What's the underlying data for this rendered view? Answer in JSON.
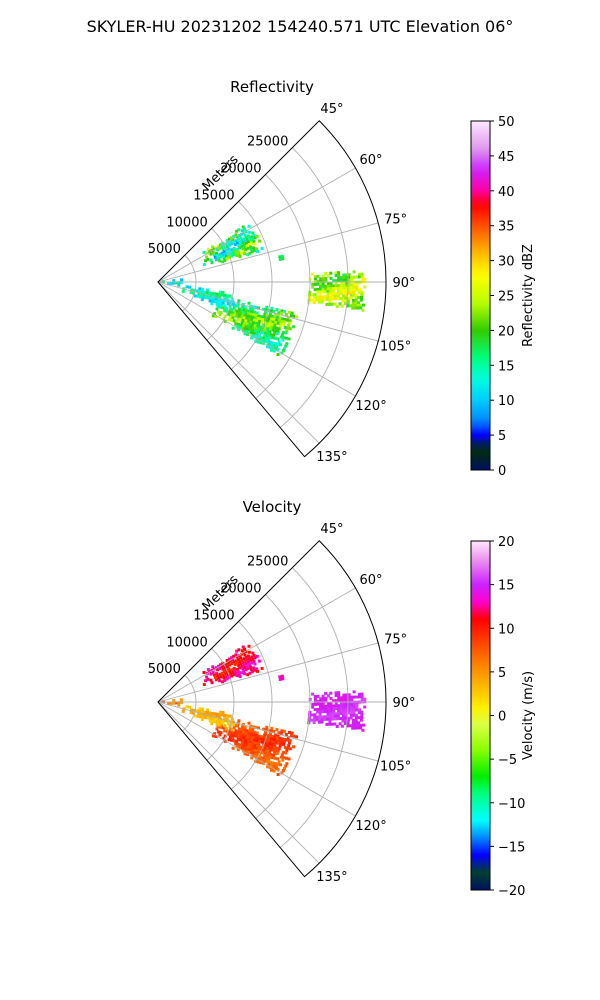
{
  "figure": {
    "title": "SKYLER-HU  20231202  154240.571 UTC Elevation 06°"
  },
  "chart_data": [
    {
      "type": "heatmap",
      "projection": "polar-sector",
      "title": "Reflectivity",
      "radial_label": "Meters",
      "radial_ticks": [
        5000,
        10000,
        15000,
        20000,
        25000
      ],
      "radial_tick_labels": [
        "5000",
        "10000",
        "15000",
        "20000",
        "25000"
      ],
      "rlim": [
        0,
        30000
      ],
      "azimuth_ticks": [
        45,
        60,
        75,
        90,
        105,
        120,
        135
      ],
      "azimuth_tick_labels": [
        "45°",
        "60°",
        "75°",
        "90°",
        "105°",
        "120°",
        "135°"
      ],
      "azimuth_range": [
        45,
        140
      ],
      "grid": true,
      "colorbar": {
        "label": "Reflectivity dBZ",
        "range": [
          0,
          50
        ],
        "ticks": [
          0,
          5,
          10,
          15,
          20,
          25,
          30,
          35,
          40,
          45,
          50
        ],
        "tick_labels": [
          "0",
          "5",
          "10",
          "15",
          "20",
          "25",
          "30",
          "35",
          "40",
          "45",
          "50"
        ],
        "stops": [
          [
            0,
            "#001060"
          ],
          [
            3,
            "#003000"
          ],
          [
            5,
            "#0000ff"
          ],
          [
            7,
            "#0088ff"
          ],
          [
            10,
            "#00ccff"
          ],
          [
            13,
            "#00ffe0"
          ],
          [
            16,
            "#00ff80"
          ],
          [
            20,
            "#33cc00"
          ],
          [
            24,
            "#bbff00"
          ],
          [
            28,
            "#ffff00"
          ],
          [
            32,
            "#ffa000"
          ],
          [
            35,
            "#ff5000"
          ],
          [
            38,
            "#ff0000"
          ],
          [
            40,
            "#ff00a0"
          ],
          [
            43,
            "#cc22ff"
          ],
          [
            46,
            "#dd99ee"
          ],
          [
            50,
            "#ffe8ff"
          ]
        ]
      },
      "echoes": [
        {
          "region": "north-line",
          "az": [
            57,
            73
          ],
          "r": [
            6500,
            14500
          ],
          "value_range": [
            8,
            26
          ]
        },
        {
          "region": "near-radar",
          "az": [
            84,
            100
          ],
          "r": [
            0,
            3200
          ],
          "value_range": [
            3,
            17
          ]
        },
        {
          "region": "east-cell",
          "az": [
            87,
            98
          ],
          "r": [
            20000,
            27500
          ],
          "value_range": [
            18,
            29
          ]
        },
        {
          "region": "south-main",
          "az": [
            103,
            122
          ],
          "r": [
            8500,
            19000
          ],
          "value_range": [
            12,
            25
          ]
        },
        {
          "region": "south-line",
          "az": [
            99,
            112
          ],
          "r": [
            3500,
            10500
          ],
          "value_range": [
            9,
            18
          ]
        },
        {
          "region": "small-east",
          "az": [
            77,
            80
          ],
          "r": [
            16000,
            17000
          ],
          "value_range": [
            15,
            20
          ]
        }
      ]
    },
    {
      "type": "heatmap",
      "projection": "polar-sector",
      "title": "Velocity",
      "radial_label": "Meters",
      "radial_ticks": [
        5000,
        10000,
        15000,
        20000,
        25000
      ],
      "radial_tick_labels": [
        "5000",
        "10000",
        "15000",
        "20000",
        "25000"
      ],
      "rlim": [
        0,
        30000
      ],
      "azimuth_ticks": [
        45,
        60,
        75,
        90,
        105,
        120,
        135
      ],
      "azimuth_tick_labels": [
        "45°",
        "60°",
        "75°",
        "90°",
        "105°",
        "120°",
        "135°"
      ],
      "azimuth_range": [
        45,
        140
      ],
      "grid": true,
      "colorbar": {
        "label": "Velocity (m/s)",
        "range": [
          -20,
          20
        ],
        "ticks": [
          -20,
          -15,
          -10,
          -5,
          0,
          5,
          10,
          15,
          20
        ],
        "tick_labels": [
          "−20",
          "−15",
          "−10",
          "−5",
          "0",
          "5",
          "10",
          "15",
          "20"
        ],
        "stops": [
          [
            -20,
            "#001060"
          ],
          [
            -18,
            "#004030"
          ],
          [
            -16,
            "#0000ff"
          ],
          [
            -14,
            "#0088ff"
          ],
          [
            -12,
            "#00ffff"
          ],
          [
            -9,
            "#00ff80"
          ],
          [
            -7,
            "#00ee00"
          ],
          [
            -4,
            "#88ff00"
          ],
          [
            -1,
            "#ddff44"
          ],
          [
            1,
            "#ffee00"
          ],
          [
            4,
            "#ffaa00"
          ],
          [
            7,
            "#ff6600"
          ],
          [
            9,
            "#ff3300"
          ],
          [
            11,
            "#ff0000"
          ],
          [
            13,
            "#ff00cc"
          ],
          [
            15,
            "#cc22ff"
          ],
          [
            18,
            "#ee99ee"
          ],
          [
            20,
            "#ffe8ff"
          ]
        ]
      },
      "echoes": [
        {
          "region": "north-line",
          "az": [
            57,
            73
          ],
          "r": [
            6500,
            14500
          ],
          "value_range": [
            9,
            14
          ]
        },
        {
          "region": "near-radar",
          "az": [
            84,
            100
          ],
          "r": [
            0,
            3200
          ],
          "value_range": [
            1,
            8
          ]
        },
        {
          "region": "east-cell",
          "az": [
            87,
            98
          ],
          "r": [
            20000,
            27500
          ],
          "value_range": [
            14,
            16
          ]
        },
        {
          "region": "south-main",
          "az": [
            103,
            122
          ],
          "r": [
            8500,
            19000
          ],
          "value_range": [
            6,
            10
          ]
        },
        {
          "region": "south-line",
          "az": [
            99,
            112
          ],
          "r": [
            3500,
            10500
          ],
          "value_range": [
            2,
            5
          ]
        },
        {
          "region": "small-east",
          "az": [
            77,
            80
          ],
          "r": [
            16000,
            17000
          ],
          "value_range": [
            12,
            14
          ]
        }
      ]
    }
  ]
}
